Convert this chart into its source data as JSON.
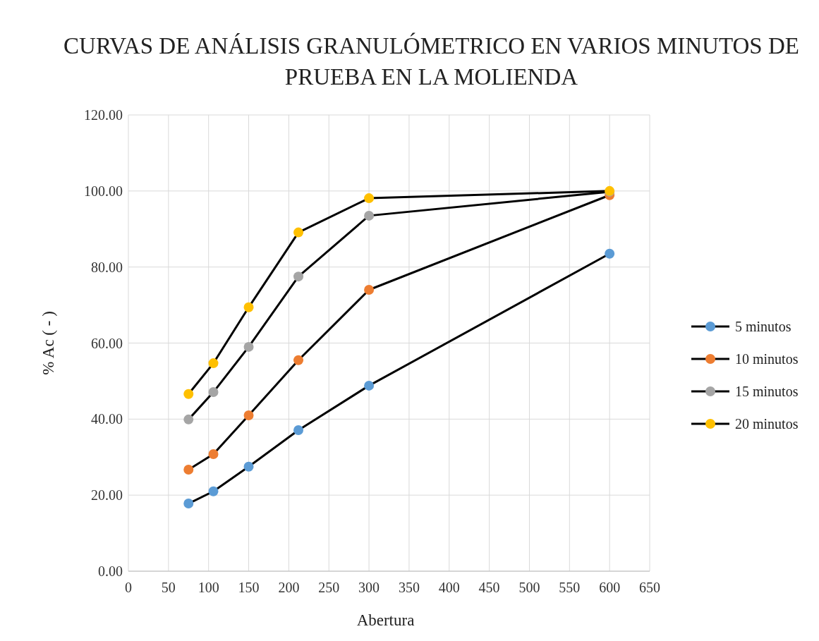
{
  "chart_data": {
    "type": "line",
    "title": "CURVAS DE ANÁLISIS GRANULÓMETRICO EN VARIOS MINUTOS DE PRUEBA EN LA MOLIENDA",
    "xlabel": "Abertura",
    "ylabel": "% Ac ( - )",
    "x": [
      75,
      106,
      150,
      212,
      300,
      600
    ],
    "series": [
      {
        "name": "5 minutos",
        "color": "#5b9bd5",
        "values": [
          17.8,
          21.0,
          27.5,
          37.1,
          48.8,
          83.5
        ]
      },
      {
        "name": "10 minutos",
        "color": "#ed7d31",
        "values": [
          26.7,
          30.8,
          41.0,
          55.5,
          74.0,
          98.9
        ]
      },
      {
        "name": "15 minutos",
        "color": "#a5a5a5",
        "values": [
          39.9,
          47.1,
          59.0,
          77.5,
          93.5,
          99.8
        ]
      },
      {
        "name": "20 minutos",
        "color": "#ffc000",
        "values": [
          46.6,
          54.7,
          69.4,
          89.1,
          98.1,
          100.0
        ]
      }
    ],
    "xlim": [
      0,
      650
    ],
    "xticks": [
      0,
      50,
      100,
      150,
      200,
      250,
      300,
      350,
      400,
      450,
      500,
      550,
      600,
      650
    ],
    "ylim": [
      0,
      120
    ],
    "yticks": [
      {
        "value": 0,
        "label": "0.00"
      },
      {
        "value": 20,
        "label": "20.00"
      },
      {
        "value": 40,
        "label": "40.00"
      },
      {
        "value": 60,
        "label": "60.00"
      },
      {
        "value": 80,
        "label": "80.00"
      },
      {
        "value": 100,
        "label": "100.00"
      },
      {
        "value": 120,
        "label": "120.00"
      }
    ],
    "grid": true,
    "legend": "right",
    "marker": "circle",
    "line_style": "solid"
  }
}
